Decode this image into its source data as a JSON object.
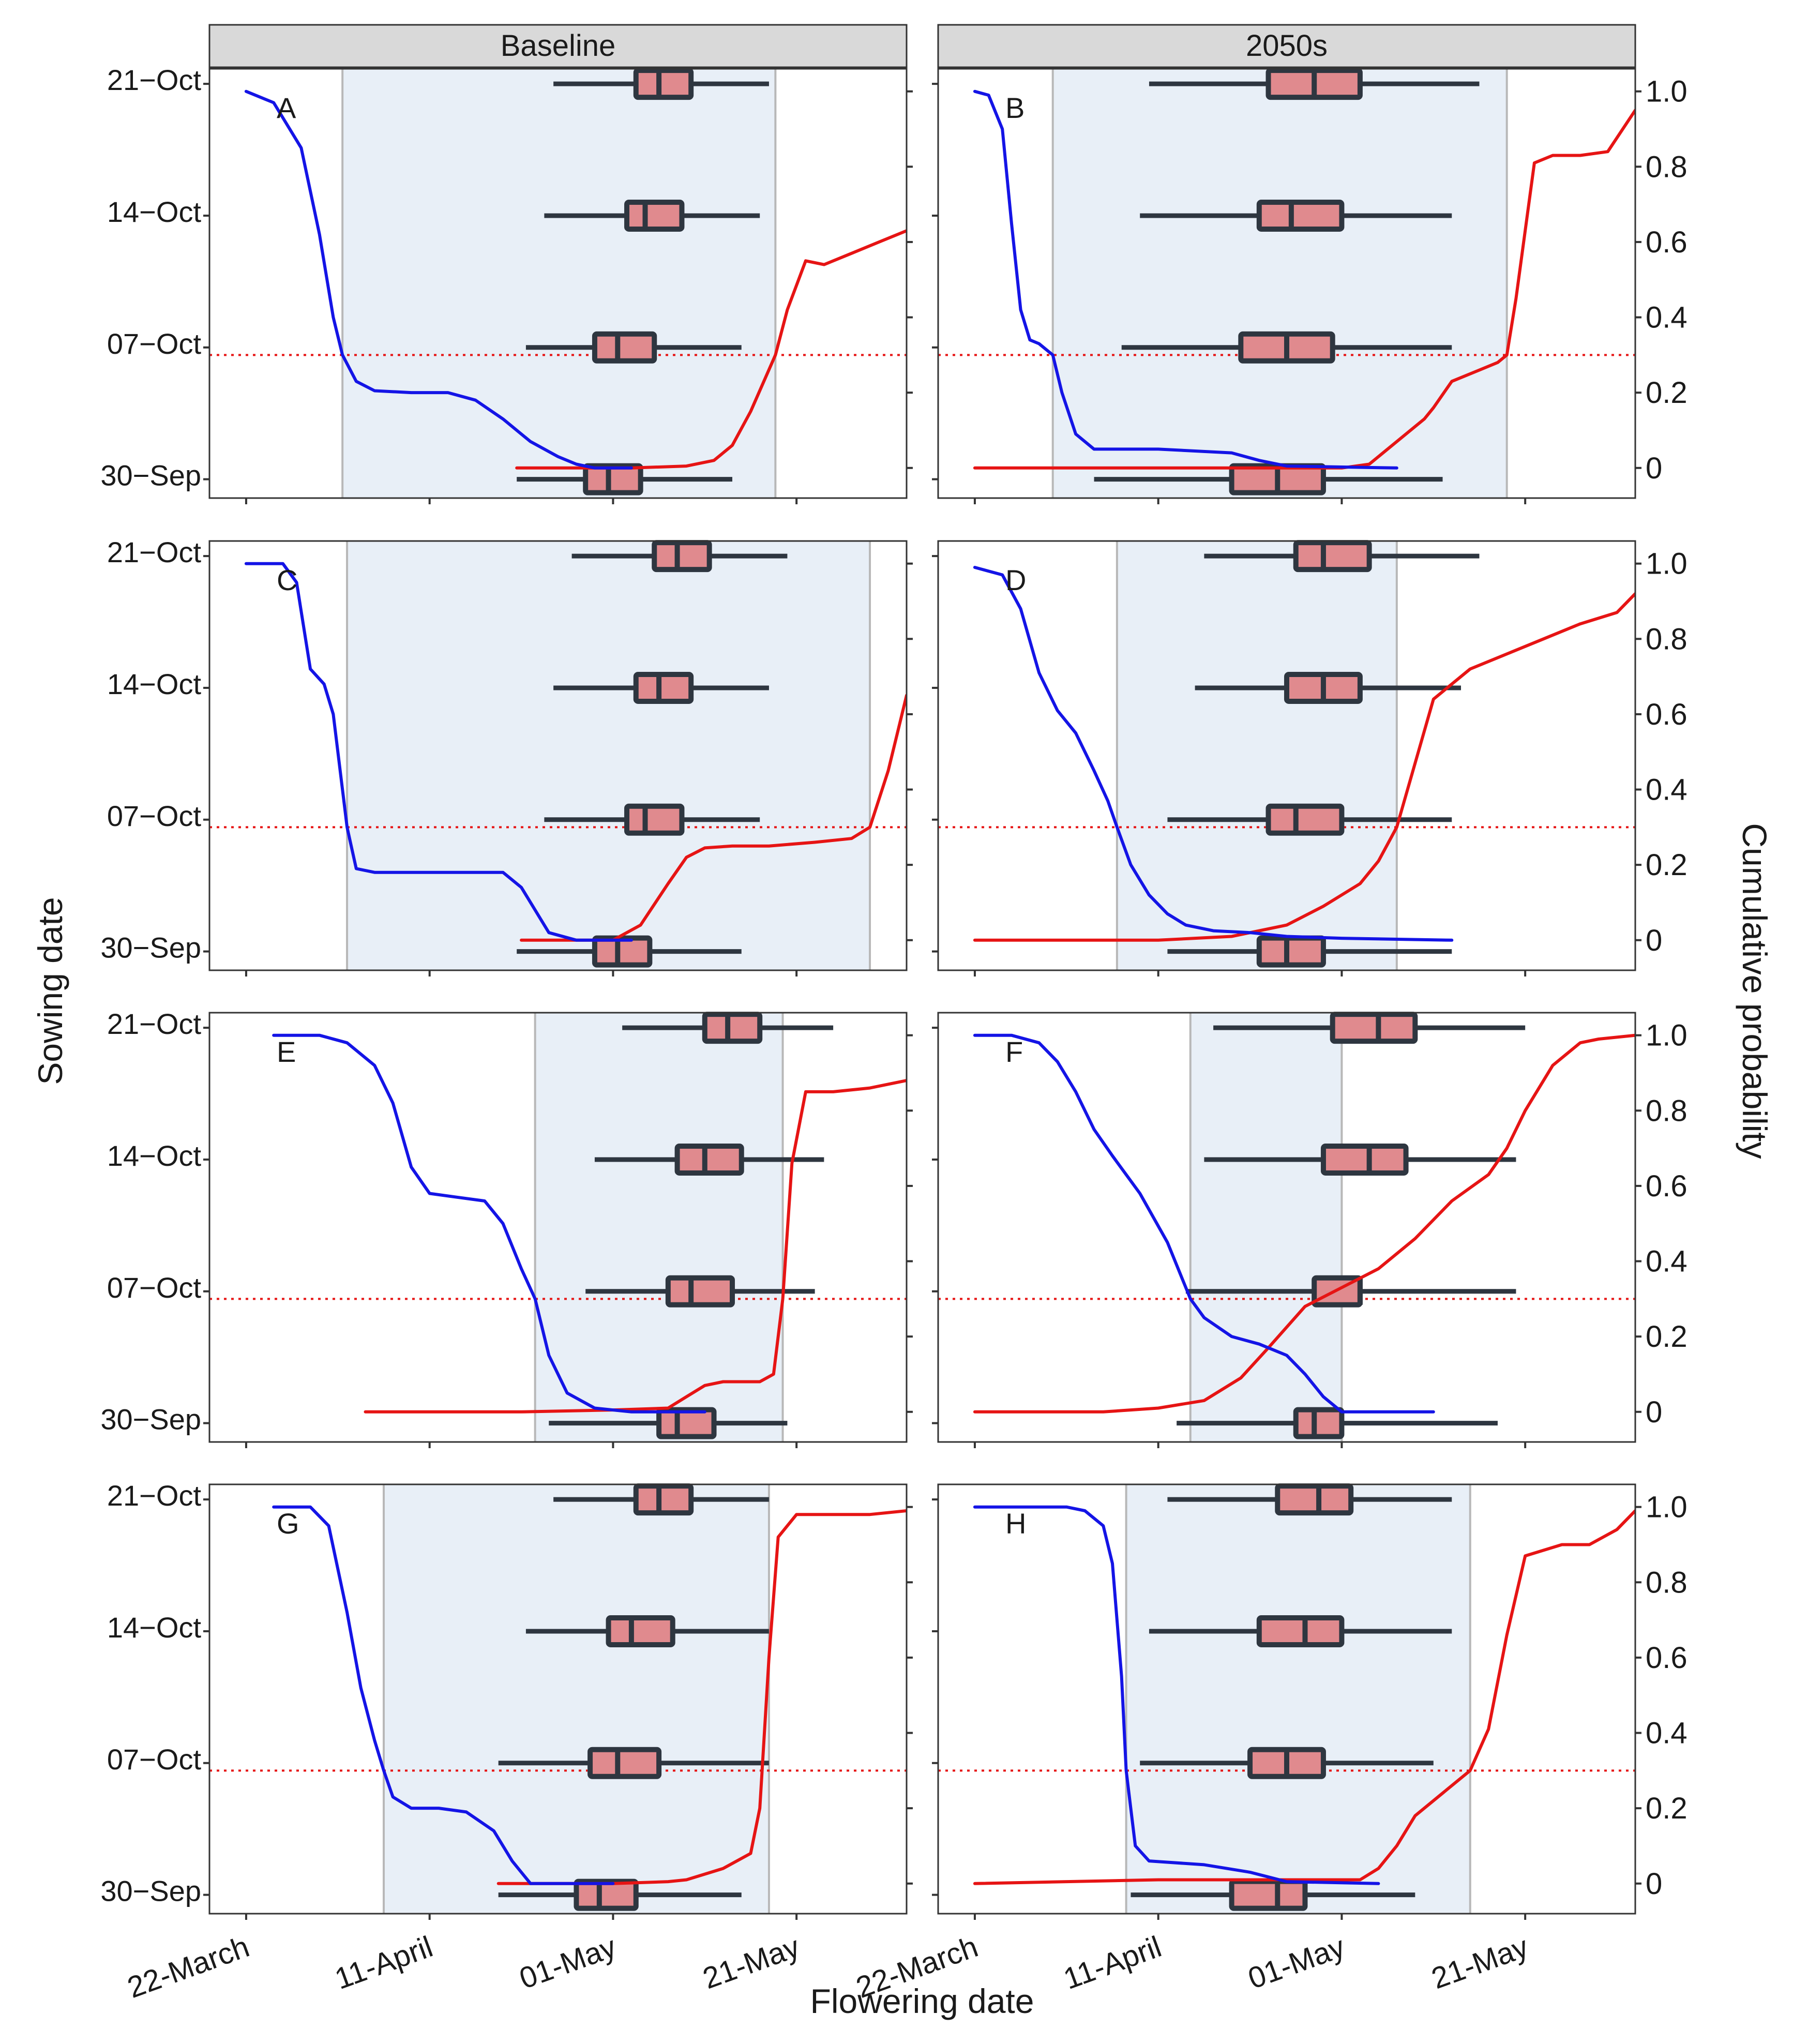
{
  "figure": {
    "strip_labels": [
      "Baseline",
      "2050s"
    ],
    "xlabel": "Flowering date",
    "ylabel_left": "Sowing date",
    "ylabel_right": "Cumulative probability",
    "x_ticks": [
      {
        "day": 0,
        "label": "22-March"
      },
      {
        "day": 20,
        "label": "11-April"
      },
      {
        "day": 40,
        "label": "01-May"
      },
      {
        "day": 60,
        "label": "21-May"
      }
    ],
    "y_ticks_left": [
      {
        "value": 0,
        "label": "30−Sep"
      },
      {
        "value": 7,
        "label": "07−Oct"
      },
      {
        "value": 14,
        "label": "14−Oct"
      },
      {
        "value": 21,
        "label": "21−Oct"
      }
    ],
    "y_ticks_right": [
      {
        "value": 0,
        "label": "0"
      },
      {
        "value": 0.2,
        "label": "0.2"
      },
      {
        "value": 0.4,
        "label": "0.4"
      },
      {
        "value": 0.6,
        "label": "0.6"
      },
      {
        "value": 0.8,
        "label": "0.8"
      },
      {
        "value": 1.0,
        "label": "1.0"
      }
    ],
    "colors": {
      "strip_fill": "#d9d9d9",
      "shade": "#e8eff7",
      "shade_border": "#b8b8b8",
      "box_fill": "#e08a8e",
      "box_stroke": "#2e3640",
      "blue_curve": "#1414e6",
      "red_curve": "#e61414",
      "threshold_line": "#e61414",
      "axis": "#333333"
    }
  },
  "chart_data": {
    "type": "boxplot_with_cumulative_probability",
    "x_axis": {
      "unit": "days after 22 March",
      "range": [
        -4,
        72
      ]
    },
    "y_axis_left": {
      "unit": "sowing date (days after 30 Sep)",
      "range": [
        -1,
        21.8
      ]
    },
    "y_axis_right": {
      "unit": "cumulative probability",
      "range": [
        -0.08,
        1.06
      ]
    },
    "threshold_probability": 0.3,
    "panels": [
      {
        "id": "A",
        "column": "Baseline",
        "shade": [
          10.5,
          57.7
        ],
        "boxes": [
          {
            "sowing": 21,
            "whisker_low": 33.5,
            "q1": 42.5,
            "median": 45.0,
            "q3": 48.5,
            "whisker_high": 57.0
          },
          {
            "sowing": 14,
            "whisker_low": 32.5,
            "q1": 41.5,
            "median": 43.5,
            "q3": 47.5,
            "whisker_high": 56.0
          },
          {
            "sowing": 7,
            "whisker_low": 30.5,
            "q1": 38.0,
            "median": 40.5,
            "q3": 44.5,
            "whisker_high": 54.0
          },
          {
            "sowing": 0,
            "whisker_low": 29.5,
            "q1": 37.0,
            "median": 39.5,
            "q3": 43.0,
            "whisker_high": 53.0
          }
        ],
        "blue_curve": {
          "x": [
            0,
            3,
            6,
            8,
            9.5,
            10.5,
            12,
            14,
            18,
            22,
            25,
            28,
            31,
            34,
            36,
            38,
            42
          ],
          "p": [
            1.0,
            0.97,
            0.85,
            0.62,
            0.4,
            0.3,
            0.23,
            0.205,
            0.2,
            0.2,
            0.18,
            0.13,
            0.07,
            0.03,
            0.01,
            0.0,
            0.0
          ]
        },
        "red_curve": {
          "x": [
            29.5,
            35,
            42,
            48,
            51,
            53,
            55,
            57.7,
            59,
            61,
            63,
            66,
            69,
            72
          ],
          "p": [
            0.0,
            0.0,
            0.0,
            0.005,
            0.02,
            0.06,
            0.15,
            0.3,
            0.42,
            0.55,
            0.54,
            0.57,
            0.6,
            0.63
          ]
        }
      },
      {
        "id": "B",
        "column": "2050s",
        "shade": [
          8.5,
          58.0
        ],
        "boxes": [
          {
            "sowing": 21,
            "whisker_low": 19.0,
            "q1": 32.0,
            "median": 37.0,
            "q3": 42.0,
            "whisker_high": 55.0
          },
          {
            "sowing": 14,
            "whisker_low": 18.0,
            "q1": 31.0,
            "median": 34.5,
            "q3": 40.0,
            "whisker_high": 52.0
          },
          {
            "sowing": 7,
            "whisker_low": 16.0,
            "q1": 29.0,
            "median": 34.0,
            "q3": 39.0,
            "whisker_high": 52.0
          },
          {
            "sowing": 0,
            "whisker_low": 13.0,
            "q1": 28.0,
            "median": 33.0,
            "q3": 38.0,
            "whisker_high": 51.0
          }
        ],
        "blue_curve": {
          "x": [
            0,
            1.5,
            3,
            4,
            5,
            6,
            7,
            8.5,
            9.5,
            11,
            13,
            20,
            28,
            31,
            34,
            46
          ],
          "p": [
            1.0,
            0.99,
            0.9,
            0.65,
            0.42,
            0.34,
            0.33,
            0.3,
            0.2,
            0.09,
            0.05,
            0.05,
            0.04,
            0.02,
            0.005,
            0.0
          ]
        },
        "red_curve": {
          "x": [
            0,
            30,
            40,
            43,
            46,
            49,
            50,
            52,
            55,
            57,
            58,
            59,
            61,
            63,
            66,
            69,
            72
          ],
          "p": [
            0.0,
            0.0,
            0.0,
            0.01,
            0.07,
            0.13,
            0.16,
            0.23,
            0.26,
            0.28,
            0.3,
            0.45,
            0.81,
            0.83,
            0.83,
            0.84,
            0.95
          ]
        }
      },
      {
        "id": "C",
        "column": "Baseline",
        "shade": [
          11.0,
          68.0
        ],
        "boxes": [
          {
            "sowing": 21,
            "whisker_low": 35.5,
            "q1": 44.5,
            "median": 47.0,
            "q3": 50.5,
            "whisker_high": 59.0
          },
          {
            "sowing": 14,
            "whisker_low": 33.5,
            "q1": 42.5,
            "median": 45.0,
            "q3": 48.5,
            "whisker_high": 57.0
          },
          {
            "sowing": 7,
            "whisker_low": 32.5,
            "q1": 41.5,
            "median": 43.5,
            "q3": 47.5,
            "whisker_high": 56.0
          },
          {
            "sowing": 0,
            "whisker_low": 29.5,
            "q1": 38.0,
            "median": 40.5,
            "q3": 44.0,
            "whisker_high": 54.0
          }
        ],
        "blue_curve": {
          "x": [
            0,
            4,
            5.5,
            7,
            8.5,
            9.5,
            10.5,
            11,
            12,
            14,
            20,
            28,
            30,
            33,
            36,
            38,
            42
          ],
          "p": [
            1.0,
            1.0,
            0.95,
            0.72,
            0.68,
            0.6,
            0.4,
            0.3,
            0.19,
            0.18,
            0.18,
            0.18,
            0.14,
            0.02,
            0.0,
            0.0,
            0.0
          ]
        },
        "red_curve": {
          "x": [
            30,
            36,
            40,
            43,
            46,
            48,
            50,
            53,
            57,
            62,
            66,
            68,
            70,
            72
          ],
          "p": [
            0.0,
            0.0,
            0.0,
            0.04,
            0.15,
            0.22,
            0.245,
            0.25,
            0.25,
            0.26,
            0.27,
            0.3,
            0.45,
            0.65
          ]
        }
      },
      {
        "id": "D",
        "column": "2050s",
        "shade": [
          15.5,
          46.0
        ],
        "boxes": [
          {
            "sowing": 21,
            "whisker_low": 25.0,
            "q1": 35.0,
            "median": 38.0,
            "q3": 43.0,
            "whisker_high": 55.0
          },
          {
            "sowing": 14,
            "whisker_low": 24.0,
            "q1": 34.0,
            "median": 38.0,
            "q3": 42.0,
            "whisker_high": 53.0
          },
          {
            "sowing": 7,
            "whisker_low": 21.0,
            "q1": 32.0,
            "median": 35.0,
            "q3": 40.0,
            "whisker_high": 52.0
          },
          {
            "sowing": 0,
            "whisker_low": 21.0,
            "q1": 31.0,
            "median": 34.0,
            "q3": 38.0,
            "whisker_high": 52.0
          }
        ],
        "blue_curve": {
          "x": [
            0,
            3,
            5,
            7,
            9,
            11,
            13,
            14.5,
            15.5,
            17,
            19,
            21,
            23,
            26,
            30,
            34,
            40,
            52
          ],
          "p": [
            0.99,
            0.97,
            0.88,
            0.71,
            0.61,
            0.55,
            0.45,
            0.37,
            0.3,
            0.2,
            0.12,
            0.07,
            0.04,
            0.025,
            0.02,
            0.01,
            0.005,
            0.0
          ]
        },
        "red_curve": {
          "x": [
            0,
            20,
            28,
            34,
            38,
            42,
            44,
            46,
            48,
            50,
            54,
            58,
            62,
            66,
            70,
            72
          ],
          "p": [
            0.0,
            0.0,
            0.01,
            0.04,
            0.09,
            0.15,
            0.21,
            0.3,
            0.47,
            0.64,
            0.72,
            0.76,
            0.8,
            0.84,
            0.87,
            0.92
          ]
        }
      },
      {
        "id": "E",
        "column": "Baseline",
        "shade": [
          31.5,
          58.5
        ],
        "boxes": [
          {
            "sowing": 21,
            "whisker_low": 41.0,
            "q1": 50.0,
            "median": 52.5,
            "q3": 56.0,
            "whisker_high": 64.0
          },
          {
            "sowing": 14,
            "whisker_low": 38.0,
            "q1": 47.0,
            "median": 50.0,
            "q3": 54.0,
            "whisker_high": 63.0
          },
          {
            "sowing": 7,
            "whisker_low": 37.0,
            "q1": 46.0,
            "median": 48.5,
            "q3": 53.0,
            "whisker_high": 62.0
          },
          {
            "sowing": 0,
            "whisker_low": 33.0,
            "q1": 45.0,
            "median": 47.0,
            "q3": 51.0,
            "whisker_high": 59.0
          }
        ],
        "blue_curve": {
          "x": [
            3,
            8,
            11,
            14,
            16,
            18,
            20,
            23,
            26,
            28,
            30,
            31.5,
            33,
            35,
            38,
            42,
            50
          ],
          "p": [
            1.0,
            1.0,
            0.98,
            0.92,
            0.82,
            0.65,
            0.58,
            0.57,
            0.56,
            0.5,
            0.38,
            0.3,
            0.15,
            0.05,
            0.01,
            0.0,
            0.0
          ]
        },
        "red_curve": {
          "x": [
            13,
            30,
            40,
            46,
            48,
            50,
            52,
            56,
            57.5,
            58.5,
            59.5,
            61,
            64,
            68,
            72
          ],
          "p": [
            0.0,
            0.0,
            0.005,
            0.01,
            0.04,
            0.07,
            0.08,
            0.08,
            0.1,
            0.3,
            0.66,
            0.85,
            0.85,
            0.86,
            0.88
          ]
        }
      },
      {
        "id": "F",
        "column": "2050s",
        "shade": [
          23.5,
          40.0
        ],
        "boxes": [
          {
            "sowing": 21,
            "whisker_low": 26.0,
            "q1": 39.0,
            "median": 44.0,
            "q3": 48.0,
            "whisker_high": 60.0
          },
          {
            "sowing": 14,
            "whisker_low": 25.0,
            "q1": 38.0,
            "median": 43.0,
            "q3": 47.0,
            "whisker_high": 59.0
          },
          {
            "sowing": 7,
            "whisker_low": 23.0,
            "q1": 37.0,
            "median": 42.0,
            "q3": 42.0,
            "whisker_high": 59.0
          },
          {
            "sowing": 0,
            "whisker_low": 22.0,
            "q1": 35.0,
            "median": 37.0,
            "q3": 40.0,
            "whisker_high": 57.0
          }
        ],
        "blue_curve": {
          "x": [
            0,
            4,
            7,
            9,
            11,
            13,
            15,
            18,
            21,
            23.5,
            25,
            28,
            31,
            34,
            36,
            38,
            40,
            44,
            50
          ],
          "p": [
            1.0,
            1.0,
            0.98,
            0.93,
            0.85,
            0.75,
            0.68,
            0.58,
            0.45,
            0.3,
            0.25,
            0.2,
            0.18,
            0.15,
            0.1,
            0.04,
            0.0,
            0.0,
            0.0
          ]
        },
        "red_curve": {
          "x": [
            0,
            14,
            20,
            25,
            29,
            32,
            36,
            40,
            44,
            48,
            52,
            56,
            58,
            60,
            63,
            66,
            68,
            72
          ],
          "p": [
            0.0,
            0.0,
            0.01,
            0.03,
            0.09,
            0.17,
            0.28,
            0.33,
            0.38,
            0.46,
            0.56,
            0.63,
            0.7,
            0.8,
            0.92,
            0.98,
            0.99,
            1.0
          ]
        }
      },
      {
        "id": "G",
        "column": "Baseline",
        "shade": [
          15.0,
          57.0
        ],
        "boxes": [
          {
            "sowing": 21,
            "whisker_low": 33.5,
            "q1": 42.5,
            "median": 45.0,
            "q3": 48.5,
            "whisker_high": 57.0
          },
          {
            "sowing": 14,
            "whisker_low": 30.5,
            "q1": 39.5,
            "median": 42.0,
            "q3": 46.5,
            "whisker_high": 57.0
          },
          {
            "sowing": 7,
            "whisker_low": 27.5,
            "q1": 37.5,
            "median": 40.5,
            "q3": 45.0,
            "whisker_high": 57.0
          },
          {
            "sowing": 0,
            "whisker_low": 27.5,
            "q1": 36.0,
            "median": 38.5,
            "q3": 42.5,
            "whisker_high": 54.0
          }
        ],
        "blue_curve": {
          "x": [
            3,
            7,
            9,
            11,
            12.5,
            14,
            15,
            16,
            18,
            21,
            24,
            27,
            29,
            31,
            35,
            40
          ],
          "p": [
            1.0,
            1.0,
            0.95,
            0.72,
            0.52,
            0.38,
            0.3,
            0.23,
            0.2,
            0.2,
            0.19,
            0.14,
            0.06,
            0.0,
            0.0,
            0.0
          ]
        },
        "red_curve": {
          "x": [
            27.5,
            40,
            46,
            48,
            52,
            55,
            56,
            57,
            58,
            60,
            64,
            68,
            72
          ],
          "p": [
            0.0,
            0.0,
            0.005,
            0.01,
            0.04,
            0.08,
            0.2,
            0.6,
            0.92,
            0.98,
            0.98,
            0.98,
            0.99
          ]
        }
      },
      {
        "id": "H",
        "column": "2050s",
        "shade": [
          16.5,
          54.0
        ],
        "boxes": [
          {
            "sowing": 21,
            "whisker_low": 21.0,
            "q1": 33.0,
            "median": 37.5,
            "q3": 41.0,
            "whisker_high": 52.0
          },
          {
            "sowing": 14,
            "whisker_low": 19.0,
            "q1": 31.0,
            "median": 36.0,
            "q3": 40.0,
            "whisker_high": 52.0
          },
          {
            "sowing": 7,
            "whisker_low": 18.0,
            "q1": 30.0,
            "median": 34.0,
            "q3": 38.0,
            "whisker_high": 50.0
          },
          {
            "sowing": 0,
            "whisker_low": 17.0,
            "q1": 28.0,
            "median": 33.0,
            "q3": 36.0,
            "whisker_high": 48.0
          }
        ],
        "blue_curve": {
          "x": [
            0,
            10,
            12,
            14,
            15,
            16,
            16.5,
            17.5,
            19,
            25,
            30,
            34,
            44
          ],
          "p": [
            1.0,
            1.0,
            0.99,
            0.95,
            0.85,
            0.55,
            0.3,
            0.1,
            0.06,
            0.05,
            0.03,
            0.005,
            0.0
          ]
        },
        "red_curve": {
          "x": [
            0,
            20,
            30,
            42,
            44,
            46,
            48,
            51,
            54,
            56,
            58,
            60,
            64,
            67,
            70,
            72
          ],
          "p": [
            0.0,
            0.01,
            0.01,
            0.01,
            0.04,
            0.1,
            0.18,
            0.24,
            0.3,
            0.41,
            0.66,
            0.87,
            0.9,
            0.9,
            0.94,
            0.99
          ]
        }
      }
    ]
  }
}
